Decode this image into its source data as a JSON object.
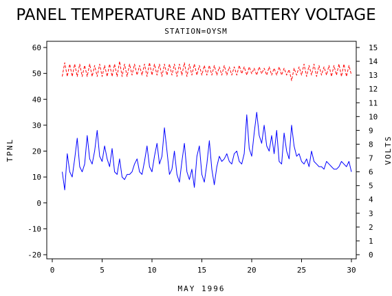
{
  "chart_data": {
    "type": "line",
    "title": "PANEL TEMPERATURE AND BATTERY VOLTAGE",
    "subtitle": "STATION=OYSM",
    "xlabel": "MAY 1996",
    "ylabel": "TPNL",
    "y2label": "VOLTS",
    "xlim": [
      0,
      30
    ],
    "ylim": [
      -20,
      60
    ],
    "y2lim": [
      0,
      15
    ],
    "x_ticks": [
      "0",
      "5",
      "10",
      "15",
      "20",
      "25",
      "30"
    ],
    "y_ticks": [
      "-20",
      "-10",
      "0",
      "10",
      "20",
      "30",
      "40",
      "50",
      "60"
    ],
    "y2_ticks": [
      "0",
      "1",
      "2",
      "3",
      "4",
      "5",
      "6",
      "7",
      "8",
      "9",
      "10",
      "11",
      "12",
      "13",
      "14",
      "15"
    ],
    "grid": false,
    "series": [
      {
        "axis": "left",
        "color": "#0000ff",
        "style": "solid",
        "x": [
          1.0,
          1.25,
          1.5,
          1.75,
          2.0,
          2.25,
          2.5,
          2.75,
          3.0,
          3.25,
          3.5,
          3.75,
          4.0,
          4.25,
          4.5,
          4.75,
          5.0,
          5.25,
          5.5,
          5.75,
          6.0,
          6.25,
          6.5,
          6.75,
          7.0,
          7.25,
          7.5,
          7.75,
          8.0,
          8.25,
          8.5,
          8.75,
          9.0,
          9.25,
          9.5,
          9.75,
          10.0,
          10.25,
          10.5,
          10.75,
          11.0,
          11.25,
          11.5,
          11.75,
          12.0,
          12.25,
          12.5,
          12.75,
          13.0,
          13.25,
          13.5,
          13.75,
          14.0,
          14.25,
          14.5,
          14.75,
          15.0,
          15.25,
          15.5,
          15.75,
          16.0,
          16.25,
          16.5,
          16.75,
          17.0,
          17.25,
          17.5,
          17.75,
          18.0,
          18.25,
          18.5,
          18.75,
          19.0,
          19.25,
          19.5,
          19.75,
          20.0,
          20.25,
          20.5,
          20.75,
          21.0,
          21.25,
          21.5,
          21.75,
          22.0,
          22.25,
          22.5,
          22.75,
          23.0,
          23.25,
          23.5,
          23.75,
          24.0,
          24.25,
          24.5,
          24.75,
          25.0,
          25.25,
          25.5,
          25.75,
          26.0,
          26.25,
          26.5,
          26.75,
          27.0,
          27.25,
          27.5,
          27.75,
          28.0,
          28.25,
          28.5,
          28.75,
          29.0,
          29.25,
          29.5,
          29.75,
          30.0
        ],
        "y": [
          12,
          5,
          19,
          12,
          10,
          17,
          25,
          14,
          12,
          15,
          26,
          17,
          15,
          20,
          28,
          18,
          16,
          22,
          17,
          14,
          21,
          12,
          11,
          17,
          10,
          9,
          11,
          11,
          12,
          15,
          17,
          12,
          11,
          16,
          22,
          14,
          12,
          18,
          23,
          15,
          18,
          29,
          20,
          11,
          13,
          20,
          11,
          8,
          16,
          23,
          12,
          9,
          13,
          6,
          18,
          22,
          11,
          8,
          15,
          24,
          13,
          7,
          14,
          18,
          16,
          17,
          19,
          16,
          15,
          19,
          20,
          16,
          15,
          19,
          34,
          21,
          18,
          27,
          35,
          26,
          23,
          30,
          22,
          20,
          26,
          19,
          28,
          16,
          15,
          27,
          20,
          17,
          30,
          22,
          18,
          19,
          16,
          15,
          17,
          14,
          20,
          16,
          15,
          14,
          14,
          13,
          16,
          15,
          14,
          13,
          13,
          14,
          16,
          15,
          14,
          16,
          12
        ]
      },
      {
        "axis": "right",
        "color": "#ff0000",
        "style": "dashed",
        "x": [
          1.0,
          1.25,
          1.5,
          1.75,
          2.0,
          2.25,
          2.5,
          2.75,
          3.0,
          3.25,
          3.5,
          3.75,
          4.0,
          4.25,
          4.5,
          4.75,
          5.0,
          5.25,
          5.5,
          5.75,
          6.0,
          6.25,
          6.5,
          6.75,
          7.0,
          7.25,
          7.5,
          7.75,
          8.0,
          8.25,
          8.5,
          8.75,
          9.0,
          9.25,
          9.5,
          9.75,
          10.0,
          10.25,
          10.5,
          10.75,
          11.0,
          11.25,
          11.5,
          11.75,
          12.0,
          12.25,
          12.5,
          12.75,
          13.0,
          13.25,
          13.5,
          13.75,
          14.0,
          14.25,
          14.5,
          14.75,
          15.0,
          15.25,
          15.5,
          15.75,
          16.0,
          16.25,
          16.5,
          16.75,
          17.0,
          17.25,
          17.5,
          17.75,
          18.0,
          18.25,
          18.5,
          18.75,
          19.0,
          19.25,
          19.5,
          19.75,
          20.0,
          20.25,
          20.5,
          20.75,
          21.0,
          21.25,
          21.5,
          21.75,
          22.0,
          22.25,
          22.5,
          22.75,
          23.0,
          23.25,
          23.5,
          23.75,
          24.0,
          24.25,
          24.5,
          24.75,
          25.0,
          25.25,
          25.5,
          25.75,
          26.0,
          26.25,
          26.5,
          26.75,
          27.0,
          27.25,
          27.5,
          27.75,
          28.0,
          28.25,
          28.5,
          28.75,
          29.0,
          29.25,
          29.5,
          29.75,
          30.0
        ],
        "y": [
          12.9,
          13.9,
          12.9,
          13.8,
          12.9,
          13.8,
          12.9,
          13.8,
          12.9,
          13.7,
          12.9,
          13.8,
          12.9,
          13.7,
          12.9,
          13.8,
          12.9,
          13.7,
          12.9,
          13.8,
          12.9,
          13.8,
          12.9,
          14.0,
          12.9,
          13.8,
          12.9,
          13.8,
          13.0,
          13.8,
          13.0,
          13.7,
          13.0,
          13.8,
          12.9,
          13.9,
          13.0,
          13.8,
          13.0,
          13.8,
          12.9,
          13.8,
          13.0,
          13.8,
          13.0,
          13.8,
          12.9,
          13.8,
          13.0,
          13.9,
          12.9,
          13.8,
          13.0,
          13.8,
          13.0,
          13.7,
          13.0,
          13.7,
          13.0,
          13.7,
          13.0,
          13.7,
          13.0,
          13.6,
          13.0,
          13.7,
          13.0,
          13.6,
          13.0,
          13.6,
          13.0,
          13.7,
          13.1,
          13.6,
          13.0,
          13.6,
          13.1,
          13.5,
          13.0,
          13.6,
          13.1,
          13.5,
          13.0,
          13.6,
          13.0,
          13.5,
          13.0,
          13.6,
          13.0,
          13.5,
          13.0,
          13.4,
          12.6,
          13.5,
          13.0,
          13.6,
          13.0,
          13.8,
          12.9,
          13.7,
          13.0,
          13.8,
          12.9,
          13.7,
          13.0,
          13.6,
          13.0,
          13.7,
          12.9,
          13.7,
          13.0,
          13.8,
          12.9,
          13.8,
          12.9,
          13.7,
          13.0
        ]
      }
    ]
  }
}
